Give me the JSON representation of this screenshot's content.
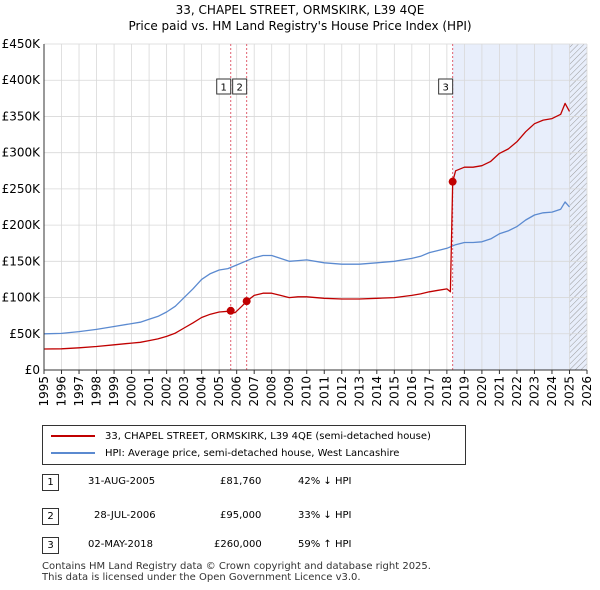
{
  "title": "33, CHAPEL STREET, ORMSKIRK, L39 4QE",
  "subtitle": "Price paid vs. HM Land Registry's House Price Index (HPI)",
  "colors": {
    "price": "#c00000",
    "hpi": "#5b8ad0",
    "shade": "#e8eefb",
    "vline": "#e06070",
    "grid": "#d8d8d8"
  },
  "legend": {
    "price_label": "33, CHAPEL STREET, ORMSKIRK, L39 4QE (semi-detached house)",
    "hpi_label": "HPI: Average price, semi-detached house, West Lancashire"
  },
  "transactions": [
    {
      "num": "1",
      "date": "31-AUG-2005",
      "price": "£81,760",
      "delta": "42% ↓ HPI",
      "year": 2005.66,
      "value": 81760
    },
    {
      "num": "2",
      "date": "28-JUL-2006",
      "price": "£95,000",
      "delta": "33% ↓ HPI",
      "year": 2006.57,
      "value": 95000
    },
    {
      "num": "3",
      "date": "02-MAY-2018",
      "price": "£260,000",
      "delta": "59% ↑ HPI",
      "year": 2018.33,
      "value": 260000
    }
  ],
  "footer": {
    "line1": "Contains HM Land Registry data © Crown copyright and database right 2025.",
    "line2": "This data is licensed under the Open Government Licence v3.0."
  },
  "chart_data": {
    "type": "line",
    "title": "33, CHAPEL STREET, ORMSKIRK, L39 4QE",
    "xlim": [
      1995,
      2026
    ],
    "ylim": [
      0,
      450000
    ],
    "x_ticks": [
      1995,
      1996,
      1997,
      1998,
      1999,
      2000,
      2001,
      2002,
      2003,
      2004,
      2005,
      2006,
      2007,
      2008,
      2009,
      2010,
      2011,
      2012,
      2013,
      2014,
      2015,
      2016,
      2017,
      2018,
      2019,
      2020,
      2021,
      2022,
      2023,
      2024,
      2025,
      2026
    ],
    "y_ticks": [
      0,
      50000,
      100000,
      150000,
      200000,
      250000,
      300000,
      350000,
      400000,
      450000
    ],
    "y_tick_labels": [
      "£0",
      "£50K",
      "£100K",
      "£150K",
      "£200K",
      "£250K",
      "£300K",
      "£350K",
      "£400K",
      "£450K"
    ],
    "shaded_range": [
      2018.33,
      2026
    ],
    "hatch_from": 2025.0,
    "series": [
      {
        "name": "HPI: Average price, semi-detached house, West Lancashire",
        "x": [
          1995,
          1996,
          1997,
          1998,
          1999,
          2000,
          2000.5,
          2001,
          2001.5,
          2002,
          2002.5,
          2003,
          2003.5,
          2004,
          2004.5,
          2005,
          2005.5,
          2006,
          2006.5,
          2007,
          2007.5,
          2008,
          2008.5,
          2009,
          2009.5,
          2010,
          2011,
          2012,
          2013,
          2014,
          2015,
          2016,
          2016.5,
          2017,
          2017.5,
          2018,
          2018.5,
          2019,
          2019.5,
          2020,
          2020.5,
          2021,
          2021.5,
          2022,
          2022.5,
          2023,
          2023.5,
          2024,
          2024.5,
          2024.75,
          2025.0
        ],
        "values": [
          50000,
          50500,
          53000,
          56000,
          60000,
          64000,
          66000,
          70000,
          74000,
          80000,
          88000,
          100000,
          112000,
          125000,
          133000,
          138000,
          140000,
          145000,
          150000,
          155000,
          158000,
          158000,
          154000,
          150000,
          151000,
          152000,
          148000,
          146000,
          146000,
          148000,
          150000,
          154000,
          157000,
          162000,
          165000,
          168000,
          173000,
          176000,
          176000,
          177000,
          181000,
          188000,
          192000,
          198000,
          207000,
          214000,
          217000,
          218000,
          222000,
          232000,
          225000
        ]
      },
      {
        "name": "33, CHAPEL STREET, ORMSKIRK, L39 4QE (semi-detached house)",
        "x": [
          1995,
          1996,
          1997,
          1998,
          1999,
          2000,
          2000.5,
          2001,
          2001.5,
          2002,
          2002.5,
          2003,
          2003.5,
          2004,
          2004.5,
          2005,
          2005.5,
          2005.66,
          2005.9,
          2006.3,
          2006.57,
          2007,
          2007.5,
          2008,
          2008.5,
          2009,
          2009.5,
          2010,
          2011,
          2012,
          2013,
          2014,
          2015,
          2016,
          2016.5,
          2017,
          2017.5,
          2018,
          2018.2,
          2018.33,
          2018.5,
          2019,
          2019.5,
          2020,
          2020.5,
          2021,
          2021.5,
          2022,
          2022.5,
          2023,
          2023.5,
          2024,
          2024.5,
          2024.75,
          2025.0
        ],
        "values": [
          29000,
          29300,
          30700,
          32500,
          34800,
          37100,
          38300,
          40600,
          42900,
          46400,
          51000,
          58000,
          65000,
          72500,
          77000,
          80000,
          81000,
          81760,
          79000,
          88000,
          95000,
          103000,
          106000,
          106000,
          103000,
          100000,
          101000,
          101000,
          99000,
          98000,
          98000,
          99000,
          100000,
          103000,
          105000,
          108000,
          110000,
          112000,
          108000,
          260000,
          275000,
          280000,
          280000,
          282000,
          288000,
          299000,
          305000,
          315000,
          329000,
          340000,
          345000,
          347000,
          353000,
          368000,
          357000
        ]
      }
    ]
  }
}
